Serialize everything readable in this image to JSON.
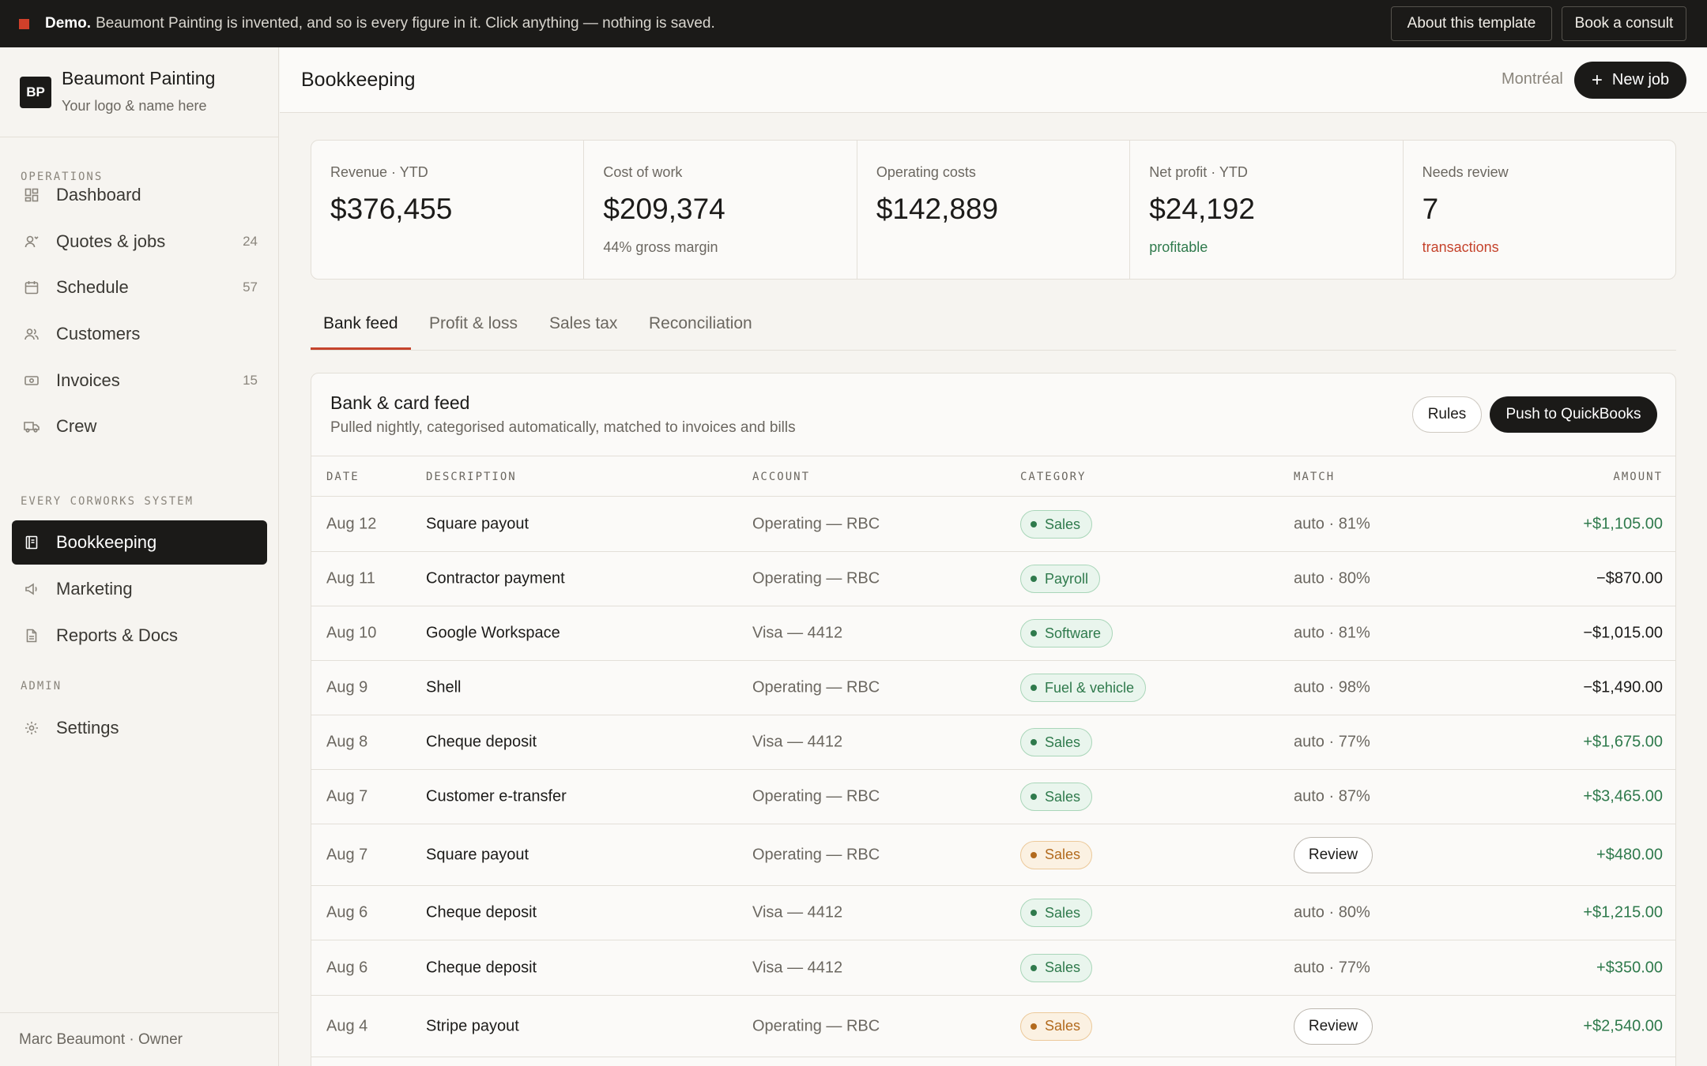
{
  "banner": {
    "demo_label": "Demo.",
    "message": "Beaumont Painting is invented, and so is every figure in it. Click anything — nothing is saved.",
    "about_label": "About this template",
    "consult_label": "Book a consult"
  },
  "brand": {
    "logo": "BP",
    "name": "Beaumont Painting",
    "sub": "Your logo & name here"
  },
  "sidebar": {
    "sections": [
      "OPERATIONS",
      "EVERY CORWORKS SYSTEM",
      "ADMIN"
    ],
    "items": [
      {
        "label": "Dashboard",
        "icon": "grid-icon",
        "count": ""
      },
      {
        "label": "Quotes & jobs",
        "icon": "person-icon",
        "count": "24"
      },
      {
        "label": "Schedule",
        "icon": "calendar-icon",
        "count": "57"
      },
      {
        "label": "Customers",
        "icon": "people-icon",
        "count": ""
      },
      {
        "label": "Invoices",
        "icon": "banknote-icon",
        "count": "15"
      },
      {
        "label": "Crew",
        "icon": "truck-icon",
        "count": ""
      },
      {
        "label": "Bookkeeping",
        "icon": "ledger-icon",
        "count": "",
        "active": true
      },
      {
        "label": "Marketing",
        "icon": "megaphone-icon",
        "count": ""
      },
      {
        "label": "Reports & Docs",
        "icon": "document-icon",
        "count": ""
      },
      {
        "label": "Settings",
        "icon": "gear-icon",
        "count": ""
      }
    ],
    "footer": "Marc Beaumont · Owner"
  },
  "header": {
    "title": "Bookkeeping",
    "city": "Montréal",
    "new_job": "New job"
  },
  "kpis": [
    {
      "label": "Revenue · YTD",
      "value": "$376,455",
      "sub": "",
      "tone": ""
    },
    {
      "label": "Cost of work",
      "value": "$209,374",
      "sub": "44% gross margin",
      "tone": ""
    },
    {
      "label": "Operating costs",
      "value": "$142,889",
      "sub": "",
      "tone": ""
    },
    {
      "label": "Net profit · YTD",
      "value": "$24,192",
      "sub": "profitable",
      "tone": "green"
    },
    {
      "label": "Needs review",
      "value": "7",
      "sub": "transactions",
      "tone": "red"
    }
  ],
  "tabs": [
    "Bank feed",
    "Profit & loss",
    "Sales tax",
    "Reconciliation"
  ],
  "feed": {
    "title": "Bank & card feed",
    "subtitle": "Pulled nightly, categorised automatically, matched to invoices and bills",
    "rules_label": "Rules",
    "push_label": "Push to QuickBooks",
    "columns": [
      "DATE",
      "DESCRIPTION",
      "ACCOUNT",
      "CATEGORY",
      "MATCH",
      "AMOUNT"
    ],
    "rows": [
      {
        "date": "Aug 12",
        "desc": "Square payout",
        "account": "Operating — RBC",
        "category": "Sales",
        "status": "ok",
        "match": "auto · 81%",
        "amount": "+$1,105.00"
      },
      {
        "date": "Aug 11",
        "desc": "Contractor payment",
        "account": "Operating — RBC",
        "category": "Payroll",
        "status": "ok",
        "match": "auto · 80%",
        "amount": "−$870.00"
      },
      {
        "date": "Aug 10",
        "desc": "Google Workspace",
        "account": "Visa — 4412",
        "category": "Software",
        "status": "ok",
        "match": "auto · 81%",
        "amount": "−$1,015.00"
      },
      {
        "date": "Aug 9",
        "desc": "Shell",
        "account": "Operating — RBC",
        "category": "Fuel & vehicle",
        "status": "ok",
        "match": "auto · 98%",
        "amount": "−$1,490.00"
      },
      {
        "date": "Aug 8",
        "desc": "Cheque deposit",
        "account": "Visa — 4412",
        "category": "Sales",
        "status": "ok",
        "match": "auto · 77%",
        "amount": "+$1,675.00"
      },
      {
        "date": "Aug 7",
        "desc": "Customer e-transfer",
        "account": "Operating — RBC",
        "category": "Sales",
        "status": "ok",
        "match": "auto · 87%",
        "amount": "+$3,465.00"
      },
      {
        "date": "Aug 7",
        "desc": "Square payout",
        "account": "Operating — RBC",
        "category": "Sales",
        "status": "review",
        "match": "Review",
        "amount": "+$480.00"
      },
      {
        "date": "Aug 6",
        "desc": "Cheque deposit",
        "account": "Visa — 4412",
        "category": "Sales",
        "status": "ok",
        "match": "auto · 80%",
        "amount": "+$1,215.00"
      },
      {
        "date": "Aug 6",
        "desc": "Cheque deposit",
        "account": "Visa — 4412",
        "category": "Sales",
        "status": "ok",
        "match": "auto · 77%",
        "amount": "+$350.00"
      },
      {
        "date": "Aug 4",
        "desc": "Stripe payout",
        "account": "Operating — RBC",
        "category": "Sales",
        "status": "review",
        "match": "Review",
        "amount": "+$2,540.00"
      }
    ]
  },
  "colors": {
    "accent": "#c5432c",
    "positive": "#2f7a4c",
    "dark": "#1b1a18",
    "warn": "#b26a1d"
  }
}
